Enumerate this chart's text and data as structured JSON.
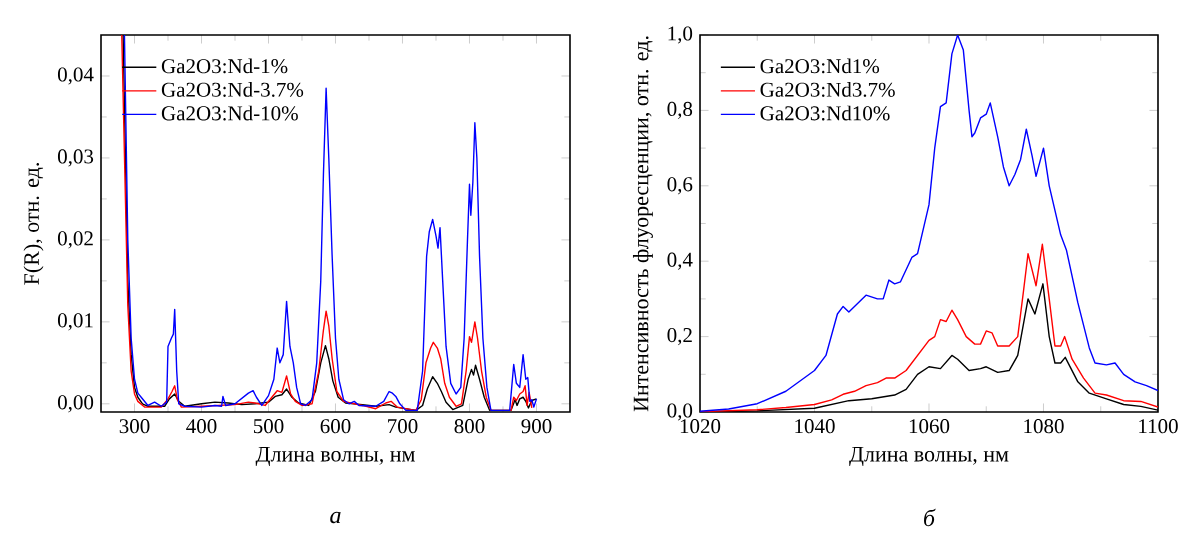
{
  "chart_data": [
    {
      "type": "line",
      "xlabel": "Длина волны, нм",
      "ylabel": "F(R), отн. ед.",
      "annotations": [
        "а"
      ],
      "legend": "top left",
      "xlim": [
        250,
        950
      ],
      "ylim": [
        -0.001,
        0.045
      ],
      "xticks": [
        300,
        400,
        500,
        600,
        700,
        800,
        900
      ],
      "yticks": [
        {
          "value": 0,
          "label": "0,00"
        },
        {
          "value": 0.01,
          "label": "0,01"
        },
        {
          "value": 0.02,
          "label": "0,02"
        },
        {
          "value": 0.03,
          "label": "0,03"
        },
        {
          "value": 0.04,
          "label": "0,04"
        }
      ],
      "series": [
        {
          "name": "Ga2O3:Nd-1%",
          "color": "#000000",
          "x": [
            283,
            290,
            295,
            300,
            305,
            312,
            320,
            345,
            352,
            360,
            366,
            375,
            400,
            420,
            440,
            460,
            480,
            500,
            510,
            520,
            527,
            535,
            545,
            560,
            570,
            578,
            585,
            590,
            596,
            604,
            615,
            640,
            660,
            680,
            690,
            720,
            730,
            737,
            745,
            752,
            758,
            765,
            775,
            790,
            798,
            803,
            806,
            809,
            815,
            822,
            830,
            862,
            868,
            871,
            875,
            880,
            884,
            888,
            893,
            900
          ],
          "values": [
            0.045,
            0.015,
            0.006,
            0.002,
            0.0008,
            0,
            -0.0003,
            -0.0003,
            0.0006,
            0.0012,
            0.0003,
            -0.0003,
            0,
            0.0002,
            0.0001,
            -0.0001,
            0,
            0.0002,
            0.0009,
            0.0011,
            0.0018,
            0.0008,
            0.0001,
            -0.0002,
            0.0015,
            0.005,
            0.0071,
            0.0055,
            0.0028,
            0.0008,
            0.0001,
            -0.0001,
            -0.0003,
            -0.0001,
            -0.0004,
            -0.0008,
            -0.0002,
            0.0018,
            0.0033,
            0.0025,
            0.0015,
            0.0002,
            -0.0007,
            -0.0002,
            0.003,
            0.0042,
            0.0035,
            0.0047,
            0.003,
            0.0008,
            -0.0008,
            -0.0008,
            0.0005,
            -0.0002,
            0.0006,
            0.0008,
            0.0003,
            -0.0005,
            0.0004,
            0.0006
          ]
        },
        {
          "name": "Ga2O3:Nd-3.7%",
          "color": "#ff0000",
          "x": [
            281,
            290,
            295,
            300,
            305,
            315,
            340,
            350,
            356,
            360,
            364,
            370,
            400,
            450,
            470,
            480,
            495,
            505,
            513,
            520,
            527,
            533,
            540,
            550,
            565,
            575,
            582,
            586,
            590,
            595,
            602,
            612,
            640,
            660,
            675,
            683,
            692,
            720,
            728,
            735,
            742,
            746,
            752,
            757,
            763,
            770,
            780,
            788,
            795,
            800,
            803,
            808,
            812,
            818,
            825,
            832,
            862,
            866,
            870,
            875,
            880,
            883,
            886,
            889,
            893
          ],
          "values": [
            0.045,
            0.012,
            0.004,
            0.0012,
            0.0003,
            -0.0004,
            -0.0004,
            0.0006,
            0.0015,
            0.0022,
            0.0005,
            -0.0004,
            -0.0003,
            -0.0001,
            0.0002,
            0.0001,
            -0.0002,
            0.0008,
            0.0016,
            0.0014,
            0.0034,
            0.0012,
            0.0003,
            -0.0002,
            0,
            0.004,
            0.009,
            0.0113,
            0.0095,
            0.0055,
            0.0015,
            0.0003,
            -0.0002,
            -0.0006,
            0.0001,
            0.0003,
            -0.0004,
            -0.0008,
            0.0005,
            0.005,
            0.0068,
            0.0075,
            0.0068,
            0.0055,
            0.0025,
            0.0008,
            -0.0003,
            0,
            0.004,
            0.0082,
            0.0075,
            0.01,
            0.008,
            0.004,
            0.0008,
            -0.0008,
            -0.0008,
            0.0008,
            0.0004,
            0.0012,
            0.0015,
            0.0022,
            -0.0002,
            0.0014,
            -0.0005
          ]
        },
        {
          "name": "Ga2O3:Nd-10%",
          "color": "#0000ff",
          "x": [
            285,
            290,
            295,
            300,
            305,
            310,
            320,
            330,
            340,
            348,
            350,
            355,
            358,
            360,
            363,
            366,
            375,
            400,
            420,
            430,
            432,
            436,
            450,
            470,
            477,
            482,
            490,
            500,
            508,
            513,
            517,
            522,
            527,
            532,
            537,
            542,
            548,
            555,
            565,
            572,
            578,
            582,
            586,
            590,
            595,
            600,
            605,
            612,
            620,
            628,
            635,
            660,
            672,
            680,
            685,
            690,
            696,
            705,
            722,
            730,
            736,
            740,
            745,
            750,
            753,
            756,
            760,
            765,
            772,
            780,
            787,
            792,
            797,
            800,
            802,
            805,
            808,
            811,
            815,
            820,
            826,
            832,
            860,
            866,
            870,
            875,
            880,
            884,
            887,
            890,
            893,
            896,
            900
          ],
          "values": [
            0.045,
            0.02,
            0.008,
            0.003,
            0.0013,
            0.0008,
            -0.0002,
            0.0002,
            -0.0003,
            0.0002,
            0.007,
            0.008,
            0.0085,
            0.0115,
            0.004,
            0,
            -0.0003,
            -0.0004,
            -0.0002,
            -0.0003,
            0.0009,
            -0.0002,
            0,
            0.0013,
            0.0016,
            0.0008,
            -0.0002,
            0.001,
            0.003,
            0.0068,
            0.005,
            0.006,
            0.0125,
            0.007,
            0.005,
            0.002,
            0,
            -0.0002,
            0.0005,
            0.005,
            0.015,
            0.028,
            0.0385,
            0.03,
            0.018,
            0.008,
            0.003,
            0.0005,
            0,
            0.0003,
            -0.0002,
            -0.0003,
            0.0003,
            0.0015,
            0.0013,
            0.0009,
            0,
            -0.0008,
            -0.0008,
            0.004,
            0.018,
            0.021,
            0.0225,
            0.0205,
            0.019,
            0.0215,
            0.015,
            0.007,
            0.0025,
            0.0012,
            0.002,
            0.008,
            0.02,
            0.0268,
            0.023,
            0.027,
            0.0343,
            0.03,
            0.018,
            0.008,
            0.002,
            -0.0008,
            -0.0008,
            0.0048,
            0.0025,
            0.002,
            0.006,
            0.003,
            0.0032,
            0.0003,
            0.0005,
            -0.0004,
            0.0006
          ]
        }
      ]
    },
    {
      "type": "line",
      "xlabel": "Длина волны, нм",
      "ylabel": "Интенсивность флуоресценции, отн. ед.",
      "annotations": [
        "б"
      ],
      "legend": "top left",
      "xlim": [
        1020,
        1100
      ],
      "ylim": [
        0,
        1.0
      ],
      "xticks": [
        1020,
        1040,
        1060,
        1080,
        1100
      ],
      "yticks": [
        {
          "value": 0,
          "label": "0,0"
        },
        {
          "value": 0.2,
          "label": "0,2"
        },
        {
          "value": 0.4,
          "label": "0,4"
        },
        {
          "value": 0.6,
          "label": "0,6"
        },
        {
          "value": 0.8,
          "label": "0,8"
        },
        {
          "value": 1.0,
          "label": "1,0"
        }
      ],
      "series": [
        {
          "name": "Ga2O3:Nd1%",
          "color": "#000000",
          "x": [
            1020,
            1030,
            1040,
            1043,
            1046,
            1050,
            1054,
            1056,
            1058,
            1060,
            1062,
            1064,
            1065,
            1067,
            1069,
            1070,
            1072,
            1074,
            1075.5,
            1077.3,
            1078.5,
            1079.9,
            1081,
            1082,
            1083,
            1083.8,
            1086,
            1088,
            1091,
            1094,
            1097,
            1100
          ],
          "values": [
            0,
            0.003,
            0.01,
            0.02,
            0.03,
            0.035,
            0.045,
            0.06,
            0.1,
            0.12,
            0.115,
            0.15,
            0.14,
            0.11,
            0.115,
            0.12,
            0.105,
            0.11,
            0.15,
            0.3,
            0.26,
            0.34,
            0.2,
            0.13,
            0.13,
            0.145,
            0.08,
            0.05,
            0.035,
            0.02,
            0.015,
            0.005
          ]
        },
        {
          "name": "Ga2O3:Nd3.7%",
          "color": "#ff0000",
          "x": [
            1020,
            1030,
            1035,
            1040,
            1043,
            1045,
            1047,
            1049,
            1051,
            1052.5,
            1054,
            1056,
            1058,
            1060,
            1061,
            1062,
            1063,
            1064,
            1065,
            1066.5,
            1068,
            1069,
            1070,
            1071,
            1072,
            1074,
            1075.5,
            1076.5,
            1077.3,
            1078.7,
            1079.8,
            1081,
            1082,
            1083,
            1083.7,
            1085,
            1087,
            1089,
            1091,
            1094,
            1097,
            1100
          ],
          "values": [
            0.001,
            0.006,
            0.012,
            0.02,
            0.032,
            0.047,
            0.055,
            0.07,
            0.078,
            0.09,
            0.09,
            0.11,
            0.15,
            0.19,
            0.2,
            0.245,
            0.24,
            0.27,
            0.245,
            0.2,
            0.18,
            0.18,
            0.215,
            0.21,
            0.175,
            0.175,
            0.2,
            0.32,
            0.42,
            0.335,
            0.445,
            0.3,
            0.175,
            0.175,
            0.2,
            0.14,
            0.09,
            0.05,
            0.045,
            0.03,
            0.028,
            0.013
          ]
        },
        {
          "name": "Ga2O3:Nd10%",
          "color": "#0000ff",
          "x": [
            1020,
            1025,
            1030,
            1035,
            1040,
            1042,
            1044,
            1045,
            1046,
            1049,
            1051,
            1052,
            1053,
            1054,
            1055,
            1057,
            1058,
            1060,
            1061,
            1062,
            1063,
            1064,
            1065,
            1066,
            1067,
            1067.5,
            1068,
            1069,
            1070,
            1070.7,
            1072,
            1073,
            1074,
            1075,
            1076,
            1077,
            1078,
            1078.7,
            1080,
            1081,
            1083,
            1084,
            1086,
            1088,
            1089,
            1091,
            1092.5,
            1094,
            1096,
            1098,
            1100
          ],
          "values": [
            0.002,
            0.008,
            0.022,
            0.055,
            0.11,
            0.15,
            0.26,
            0.28,
            0.265,
            0.31,
            0.3,
            0.3,
            0.35,
            0.34,
            0.345,
            0.41,
            0.42,
            0.55,
            0.7,
            0.81,
            0.82,
            0.95,
            1.0,
            0.96,
            0.8,
            0.73,
            0.74,
            0.78,
            0.79,
            0.82,
            0.73,
            0.65,
            0.6,
            0.63,
            0.67,
            0.75,
            0.68,
            0.625,
            0.7,
            0.6,
            0.47,
            0.43,
            0.29,
            0.17,
            0.13,
            0.125,
            0.13,
            0.1,
            0.08,
            0.07,
            0.057
          ]
        }
      ]
    }
  ]
}
